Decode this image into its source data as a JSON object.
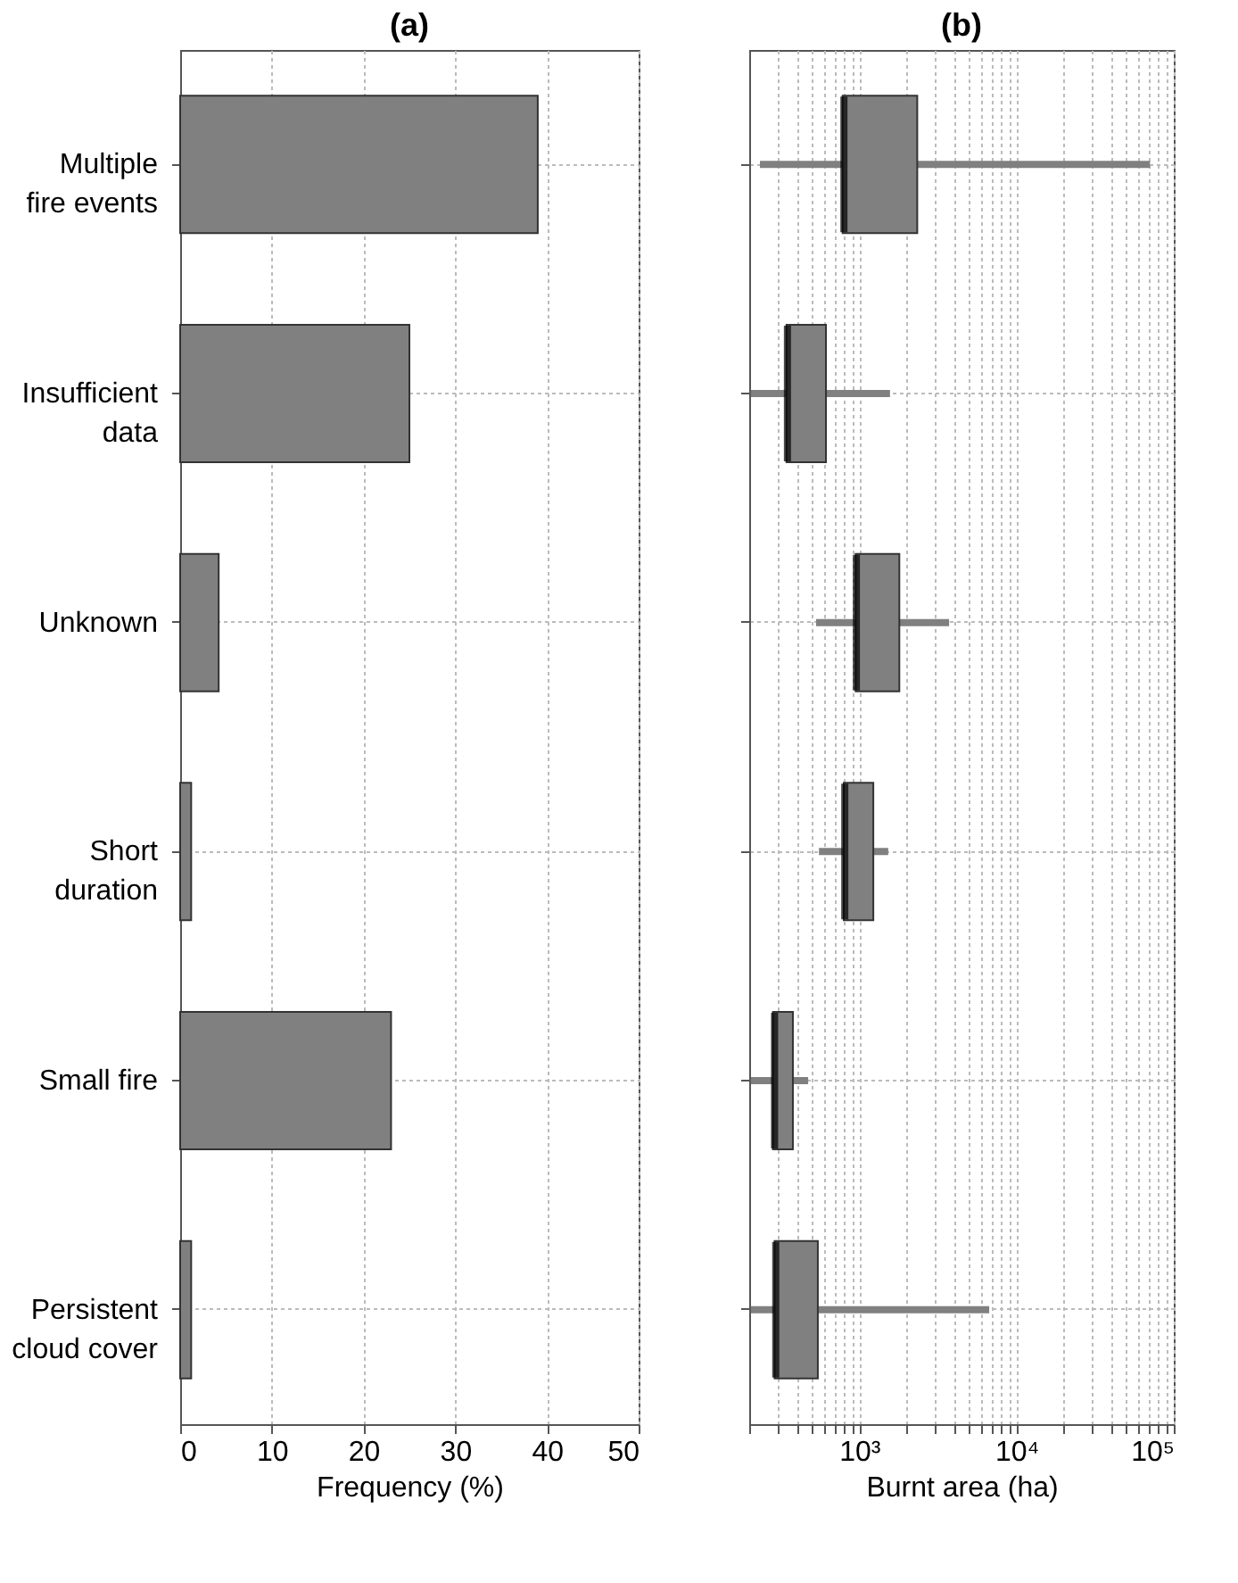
{
  "chart_data": [
    {
      "type": "bar",
      "orientation": "horizontal",
      "title": "(a)",
      "xlabel": "Frequency (%)",
      "categories": [
        "Multiple\nfire events",
        "Insufficient\ndata",
        "Unknown",
        "Short\nduration",
        "Small fire",
        "Persistent\ncloud cover"
      ],
      "values": [
        39,
        25,
        4.2,
        1.2,
        23,
        1.2
      ],
      "color": "#808080",
      "xlim": [
        0,
        50
      ],
      "xticks": [
        0,
        10,
        20,
        30,
        40,
        50
      ],
      "grid": true
    },
    {
      "type": "box",
      "orientation": "horizontal",
      "title": "(b)",
      "xlabel": "Burnt area (ha)",
      "log": "x",
      "color": "#808080",
      "tick_labels": "x",
      "grid": true,
      "boxes": [
        {
          "low": 234,
          "q1": 785,
          "median": 800,
          "q3": 2340,
          "high": 70600
        },
        {
          "low": 205,
          "q1": 345,
          "median": 350,
          "q3": 615,
          "high": 1570
        },
        {
          "low": 532,
          "q1": 950,
          "median": 960,
          "q3": 1800,
          "high": 3730
        },
        {
          "low": 555,
          "q1": 798,
          "median": 810,
          "q3": 1230,
          "high": 1530
        },
        {
          "low": 205,
          "q1": 283,
          "median": 290,
          "q3": 379,
          "high": 474
        },
        {
          "low": 205,
          "q1": 290,
          "median": 295,
          "q3": 546,
          "high": 6710
        }
      ],
      "xlim": [
        200,
        100000
      ],
      "xticks": [
        {
          "value": 200,
          "label": null
        },
        {
          "value": 300,
          "label": null
        },
        {
          "value": 400,
          "label": null
        },
        {
          "value": 500,
          "label": null
        },
        {
          "value": 600,
          "label": null
        },
        {
          "value": 700,
          "label": null
        },
        {
          "value": 800,
          "label": null
        },
        {
          "value": 900,
          "label": null
        },
        {
          "value": 1000,
          "label": "10³"
        },
        {
          "value": 2000,
          "label": null
        },
        {
          "value": 3000,
          "label": null
        },
        {
          "value": 4000,
          "label": null
        },
        {
          "value": 5000,
          "label": null
        },
        {
          "value": 6000,
          "label": null
        },
        {
          "value": 7000,
          "label": null
        },
        {
          "value": 8000,
          "label": null
        },
        {
          "value": 9000,
          "label": null
        },
        {
          "value": 10000,
          "label": "10⁴"
        },
        {
          "value": 20000,
          "label": null
        },
        {
          "value": 30000,
          "label": null
        },
        {
          "value": 40000,
          "label": null
        },
        {
          "value": 50000,
          "label": null
        },
        {
          "value": 60000,
          "label": null
        },
        {
          "value": 70000,
          "label": null
        },
        {
          "value": 80000,
          "label": null
        },
        {
          "value": 90000,
          "label": null
        },
        {
          "value": 100000,
          "label": "10⁵"
        }
      ]
    }
  ]
}
